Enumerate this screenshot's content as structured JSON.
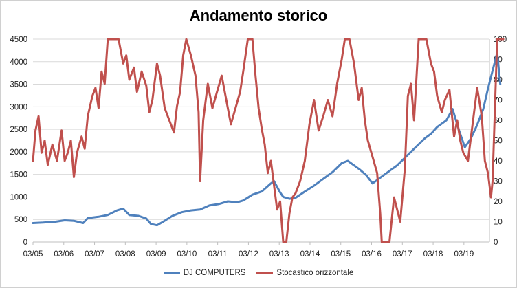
{
  "chart_data": {
    "type": "line",
    "title": "Andamento storico",
    "x_tick_labels": [
      "03/05",
      "03/06",
      "03/07",
      "03/08",
      "03/09",
      "03/10",
      "03/11",
      "03/12",
      "03/13",
      "03/14",
      "03/15",
      "03/16",
      "03/17",
      "03/18",
      "03/19"
    ],
    "y_left": {
      "ylim": [
        0,
        4500
      ],
      "ticks": [
        "0",
        "500",
        "1000",
        "1500",
        "2000",
        "2500",
        "3000",
        "3500",
        "4000",
        "4500"
      ]
    },
    "y_right": {
      "ylim": [
        0,
        100
      ],
      "ticks": [
        "0",
        "10",
        "20",
        "30",
        "40",
        "50",
        "60",
        "70",
        "80",
        "90",
        "100"
      ]
    },
    "x_range": [
      2005.17,
      2020.0
    ],
    "grid": true,
    "legend_position": "bottom",
    "series": [
      {
        "name": "DJ COMPUTERS",
        "axis": "left",
        "color": "#4f81bd",
        "points": [
          [
            2005.17,
            420
          ],
          [
            2005.5,
            430
          ],
          [
            2005.9,
            450
          ],
          [
            2006.2,
            480
          ],
          [
            2006.5,
            470
          ],
          [
            2006.8,
            420
          ],
          [
            2006.95,
            530
          ],
          [
            2007.3,
            560
          ],
          [
            2007.6,
            600
          ],
          [
            2007.9,
            700
          ],
          [
            2008.1,
            740
          ],
          [
            2008.3,
            600
          ],
          [
            2008.6,
            580
          ],
          [
            2008.85,
            520
          ],
          [
            2009.0,
            400
          ],
          [
            2009.2,
            370
          ],
          [
            2009.4,
            450
          ],
          [
            2009.7,
            580
          ],
          [
            2010.0,
            660
          ],
          [
            2010.3,
            700
          ],
          [
            2010.6,
            720
          ],
          [
            2010.9,
            810
          ],
          [
            2011.2,
            840
          ],
          [
            2011.5,
            900
          ],
          [
            2011.8,
            880
          ],
          [
            2012.0,
            920
          ],
          [
            2012.3,
            1050
          ],
          [
            2012.6,
            1120
          ],
          [
            2012.9,
            1300
          ],
          [
            2013.0,
            1350
          ],
          [
            2013.2,
            1100
          ],
          [
            2013.3,
            1000
          ],
          [
            2013.5,
            960
          ],
          [
            2013.7,
            980
          ],
          [
            2014.0,
            1120
          ],
          [
            2014.3,
            1250
          ],
          [
            2014.6,
            1400
          ],
          [
            2014.9,
            1550
          ],
          [
            2015.2,
            1750
          ],
          [
            2015.4,
            1800
          ],
          [
            2015.6,
            1700
          ],
          [
            2015.8,
            1600
          ],
          [
            2016.0,
            1480
          ],
          [
            2016.2,
            1300
          ],
          [
            2016.5,
            1450
          ],
          [
            2016.8,
            1600
          ],
          [
            2017.0,
            1700
          ],
          [
            2017.3,
            1900
          ],
          [
            2017.6,
            2100
          ],
          [
            2017.9,
            2300
          ],
          [
            2018.1,
            2400
          ],
          [
            2018.3,
            2550
          ],
          [
            2018.6,
            2700
          ],
          [
            2018.8,
            2950
          ],
          [
            2019.0,
            2500
          ],
          [
            2019.2,
            2100
          ],
          [
            2019.4,
            2300
          ],
          [
            2019.6,
            2600
          ],
          [
            2019.8,
            2950
          ],
          [
            2019.95,
            3400
          ],
          [
            2020.1,
            3800
          ],
          [
            2020.25,
            4200
          ],
          [
            2020.35,
            3500
          ]
        ]
      },
      {
        "name": "Stocastico orizzontale",
        "axis": "right",
        "color": "#c0504d",
        "points": [
          [
            2005.17,
            40
          ],
          [
            2005.25,
            55
          ],
          [
            2005.35,
            62
          ],
          [
            2005.45,
            44
          ],
          [
            2005.55,
            50
          ],
          [
            2005.65,
            38
          ],
          [
            2005.8,
            48
          ],
          [
            2005.95,
            40
          ],
          [
            2006.1,
            55
          ],
          [
            2006.2,
            40
          ],
          [
            2006.3,
            44
          ],
          [
            2006.4,
            50
          ],
          [
            2006.5,
            32
          ],
          [
            2006.6,
            44
          ],
          [
            2006.75,
            52
          ],
          [
            2006.85,
            46
          ],
          [
            2006.95,
            62
          ],
          [
            2007.1,
            72
          ],
          [
            2007.2,
            76
          ],
          [
            2007.3,
            66
          ],
          [
            2007.4,
            84
          ],
          [
            2007.5,
            78
          ],
          [
            2007.6,
            100
          ],
          [
            2007.8,
            100
          ],
          [
            2007.95,
            100
          ],
          [
            2008.1,
            88
          ],
          [
            2008.2,
            92
          ],
          [
            2008.3,
            80
          ],
          [
            2008.45,
            86
          ],
          [
            2008.55,
            74
          ],
          [
            2008.7,
            84
          ],
          [
            2008.85,
            77
          ],
          [
            2008.95,
            64
          ],
          [
            2009.05,
            70
          ],
          [
            2009.2,
            88
          ],
          [
            2009.3,
            82
          ],
          [
            2009.45,
            66
          ],
          [
            2009.6,
            60
          ],
          [
            2009.75,
            54
          ],
          [
            2009.85,
            67
          ],
          [
            2009.95,
            74
          ],
          [
            2010.05,
            92
          ],
          [
            2010.15,
            100
          ],
          [
            2010.3,
            92
          ],
          [
            2010.45,
            82
          ],
          [
            2010.55,
            64
          ],
          [
            2010.6,
            30
          ],
          [
            2010.7,
            60
          ],
          [
            2010.85,
            78
          ],
          [
            2011.0,
            66
          ],
          [
            2011.15,
            74
          ],
          [
            2011.3,
            82
          ],
          [
            2011.45,
            70
          ],
          [
            2011.6,
            58
          ],
          [
            2011.75,
            66
          ],
          [
            2011.9,
            74
          ],
          [
            2012.0,
            84
          ],
          [
            2012.15,
            100
          ],
          [
            2012.3,
            100
          ],
          [
            2012.4,
            82
          ],
          [
            2012.5,
            66
          ],
          [
            2012.6,
            56
          ],
          [
            2012.7,
            48
          ],
          [
            2012.8,
            34
          ],
          [
            2012.9,
            40
          ],
          [
            2013.0,
            28
          ],
          [
            2013.1,
            16
          ],
          [
            2013.2,
            20
          ],
          [
            2013.3,
            0
          ],
          [
            2013.4,
            0
          ],
          [
            2013.5,
            14
          ],
          [
            2013.6,
            22
          ],
          [
            2013.7,
            24
          ],
          [
            2013.85,
            30
          ],
          [
            2014.0,
            40
          ],
          [
            2014.15,
            58
          ],
          [
            2014.3,
            70
          ],
          [
            2014.45,
            55
          ],
          [
            2014.6,
            62
          ],
          [
            2014.75,
            70
          ],
          [
            2014.9,
            62
          ],
          [
            2015.05,
            78
          ],
          [
            2015.2,
            90
          ],
          [
            2015.3,
            100
          ],
          [
            2015.45,
            100
          ],
          [
            2015.6,
            88
          ],
          [
            2015.75,
            70
          ],
          [
            2015.85,
            76
          ],
          [
            2015.95,
            60
          ],
          [
            2016.05,
            50
          ],
          [
            2016.2,
            42
          ],
          [
            2016.35,
            34
          ],
          [
            2016.45,
            14
          ],
          [
            2016.5,
            0
          ],
          [
            2016.6,
            0
          ],
          [
            2016.75,
            0
          ],
          [
            2016.9,
            22
          ],
          [
            2017.0,
            16
          ],
          [
            2017.1,
            10
          ],
          [
            2017.25,
            36
          ],
          [
            2017.35,
            72
          ],
          [
            2017.45,
            78
          ],
          [
            2017.55,
            60
          ],
          [
            2017.7,
            100
          ],
          [
            2017.85,
            100
          ],
          [
            2017.95,
            100
          ],
          [
            2018.1,
            88
          ],
          [
            2018.2,
            84
          ],
          [
            2018.3,
            72
          ],
          [
            2018.45,
            64
          ],
          [
            2018.55,
            70
          ],
          [
            2018.7,
            75
          ],
          [
            2018.85,
            52
          ],
          [
            2018.95,
            60
          ],
          [
            2019.05,
            50
          ],
          [
            2019.15,
            44
          ],
          [
            2019.3,
            40
          ],
          [
            2019.45,
            58
          ],
          [
            2019.6,
            76
          ],
          [
            2019.75,
            62
          ],
          [
            2019.85,
            40
          ],
          [
            2019.95,
            34
          ],
          [
            2020.05,
            22
          ],
          [
            2020.1,
            30
          ],
          [
            2020.25,
            100
          ],
          [
            2020.35,
            100
          ],
          [
            2020.45,
            100
          ]
        ]
      }
    ]
  }
}
